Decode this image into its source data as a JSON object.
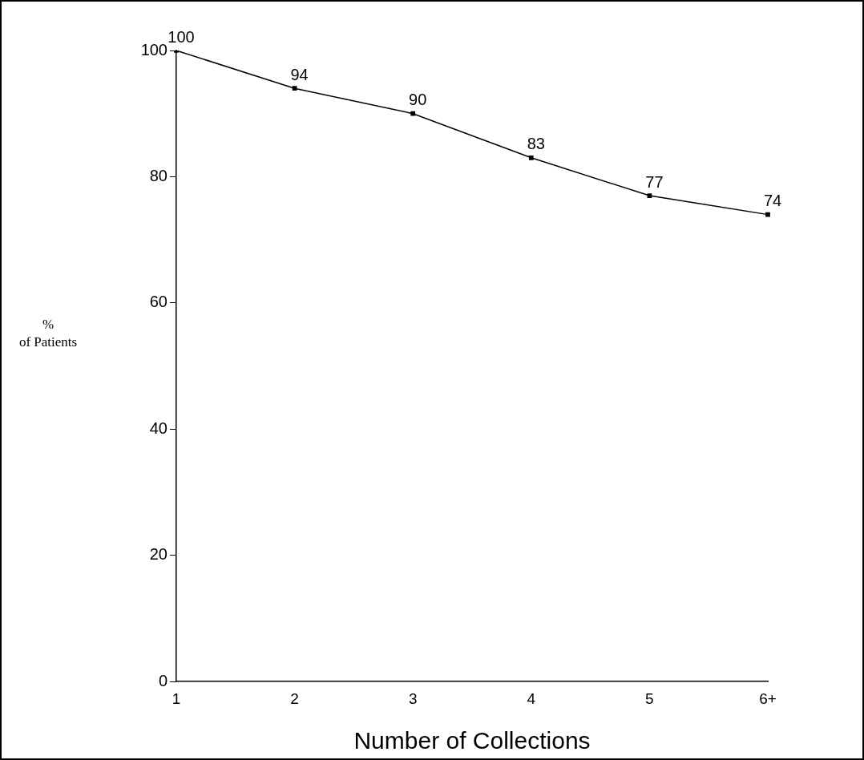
{
  "chart_data": {
    "type": "line",
    "xlabel": "Number of Collections",
    "ylabel": "%\nof Patients",
    "categories": [
      "1",
      "2",
      "3",
      "4",
      "5",
      "6+"
    ],
    "values": [
      100,
      94,
      90,
      83,
      77,
      74
    ],
    "color": "#000000",
    "ylim": [
      0,
      100
    ],
    "yticks": [
      0,
      20,
      40,
      60,
      80,
      100
    ],
    "grid": false,
    "legend": false,
    "marker": "square",
    "line_style": "solid",
    "data_labels": true
  }
}
